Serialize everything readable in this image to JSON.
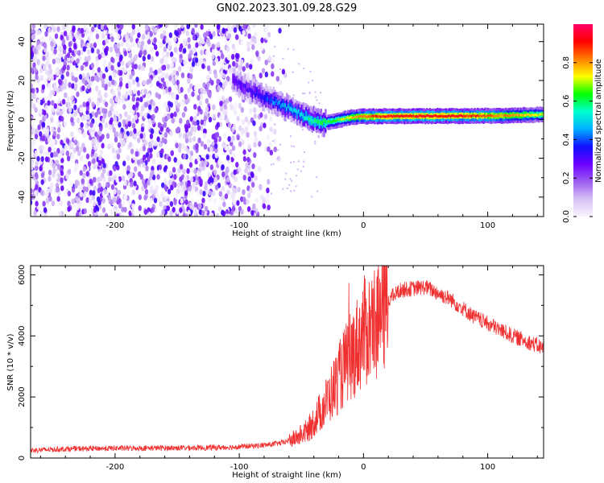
{
  "figure": {
    "title": "GN02.2023.301.09.28.G29"
  },
  "chart_data": [
    {
      "type": "heatmap",
      "xlabel": "Height of straight line (km)",
      "ylabel": "Frequency (Hz)",
      "xlim": [
        -268,
        145
      ],
      "ylim": [
        -50,
        49
      ],
      "x_ticks": [
        -200,
        -100,
        0,
        100
      ],
      "y_ticks": [
        -40,
        -20,
        0,
        20,
        40
      ],
      "colorbar": {
        "label": "Normalized spectral amplitude",
        "range": [
          0.0,
          1.0
        ],
        "ticks": [
          "0.0",
          "0.2",
          "0.4",
          "0.6",
          "0.8"
        ],
        "tick_values": [
          0.0,
          0.2,
          0.4,
          0.6,
          0.8
        ],
        "colormap": [
          "#f7f4fd",
          "#d7c2f5",
          "#9b5cf0",
          "#6a00ff",
          "#1010ff",
          "#00b0ff",
          "#00ffd0",
          "#00ff00",
          "#ffff00",
          "#ff8000",
          "#ff0000",
          "#ff0066"
        ]
      },
      "features": {
        "noise_region_x": [
          -268,
          -70
        ],
        "signal_track": {
          "x": [
            -105,
            -95,
            -85,
            -75,
            -65,
            -55,
            -45,
            -35,
            -25,
            -10,
            0,
            20,
            40,
            60,
            80,
            100,
            120,
            145
          ],
          "y": [
            20,
            16,
            13,
            10,
            7,
            4,
            1,
            -2,
            -1,
            1,
            1.5,
            1.6,
            1.7,
            1.7,
            1.8,
            1.8,
            2,
            2.5
          ],
          "amplitude": [
            0.3,
            0.3,
            0.35,
            0.4,
            0.45,
            0.5,
            0.55,
            0.6,
            0.65,
            0.75,
            0.85,
            0.9,
            0.92,
            0.92,
            0.9,
            0.85,
            0.8,
            0.7
          ]
        }
      }
    },
    {
      "type": "line",
      "xlabel": "Height of straight line (km)",
      "ylabel": "SNR (10 * v/v)",
      "xlim": [
        -268,
        145
      ],
      "ylim": [
        0,
        6300
      ],
      "x_ticks": [
        -200,
        -100,
        0,
        100
      ],
      "y_ticks": [
        0,
        2000,
        4000,
        6000
      ],
      "color": "#f03030",
      "series": [
        {
          "x": [
            -268,
            -240,
            -200,
            -160,
            -120,
            -100,
            -80,
            -65,
            -55,
            -45,
            -35,
            -25,
            -15,
            -5,
            0,
            10,
            20,
            30,
            40,
            50,
            60,
            70,
            80,
            90,
            100,
            110,
            120,
            130,
            145
          ],
          "values": [
            250,
            300,
            320,
            330,
            340,
            370,
            420,
            500,
            650,
            900,
            1500,
            2200,
            3000,
            3700,
            4100,
            4500,
            5200,
            5500,
            5550,
            5600,
            5400,
            5200,
            4900,
            4600,
            4400,
            4200,
            4000,
            3850,
            3600
          ]
        }
      ]
    }
  ]
}
